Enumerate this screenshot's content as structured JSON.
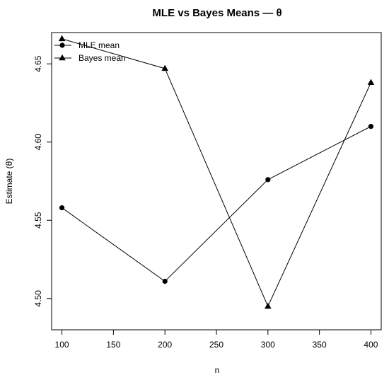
{
  "chart_data": {
    "type": "line",
    "title": "MLE vs Bayes Means — θ",
    "xlabel": "n",
    "ylabel": "Estimate (θ)",
    "x": [
      100,
      200,
      300,
      400
    ],
    "xticks": [
      "100",
      "150",
      "200",
      "250",
      "300",
      "350",
      "400"
    ],
    "yticks": [
      "4.50",
      "4.55",
      "4.60",
      "4.65"
    ],
    "xlim": [
      90,
      410
    ],
    "ylim": [
      4.48,
      4.67
    ],
    "grid": false,
    "legend_position": "top-left",
    "series": [
      {
        "name": "MLE mean",
        "marker": "circle",
        "values": [
          4.558,
          4.511,
          4.576,
          4.61
        ]
      },
      {
        "name": "Bayes mean",
        "marker": "triangle",
        "values": [
          4.666,
          4.647,
          4.495,
          4.638
        ]
      }
    ]
  }
}
